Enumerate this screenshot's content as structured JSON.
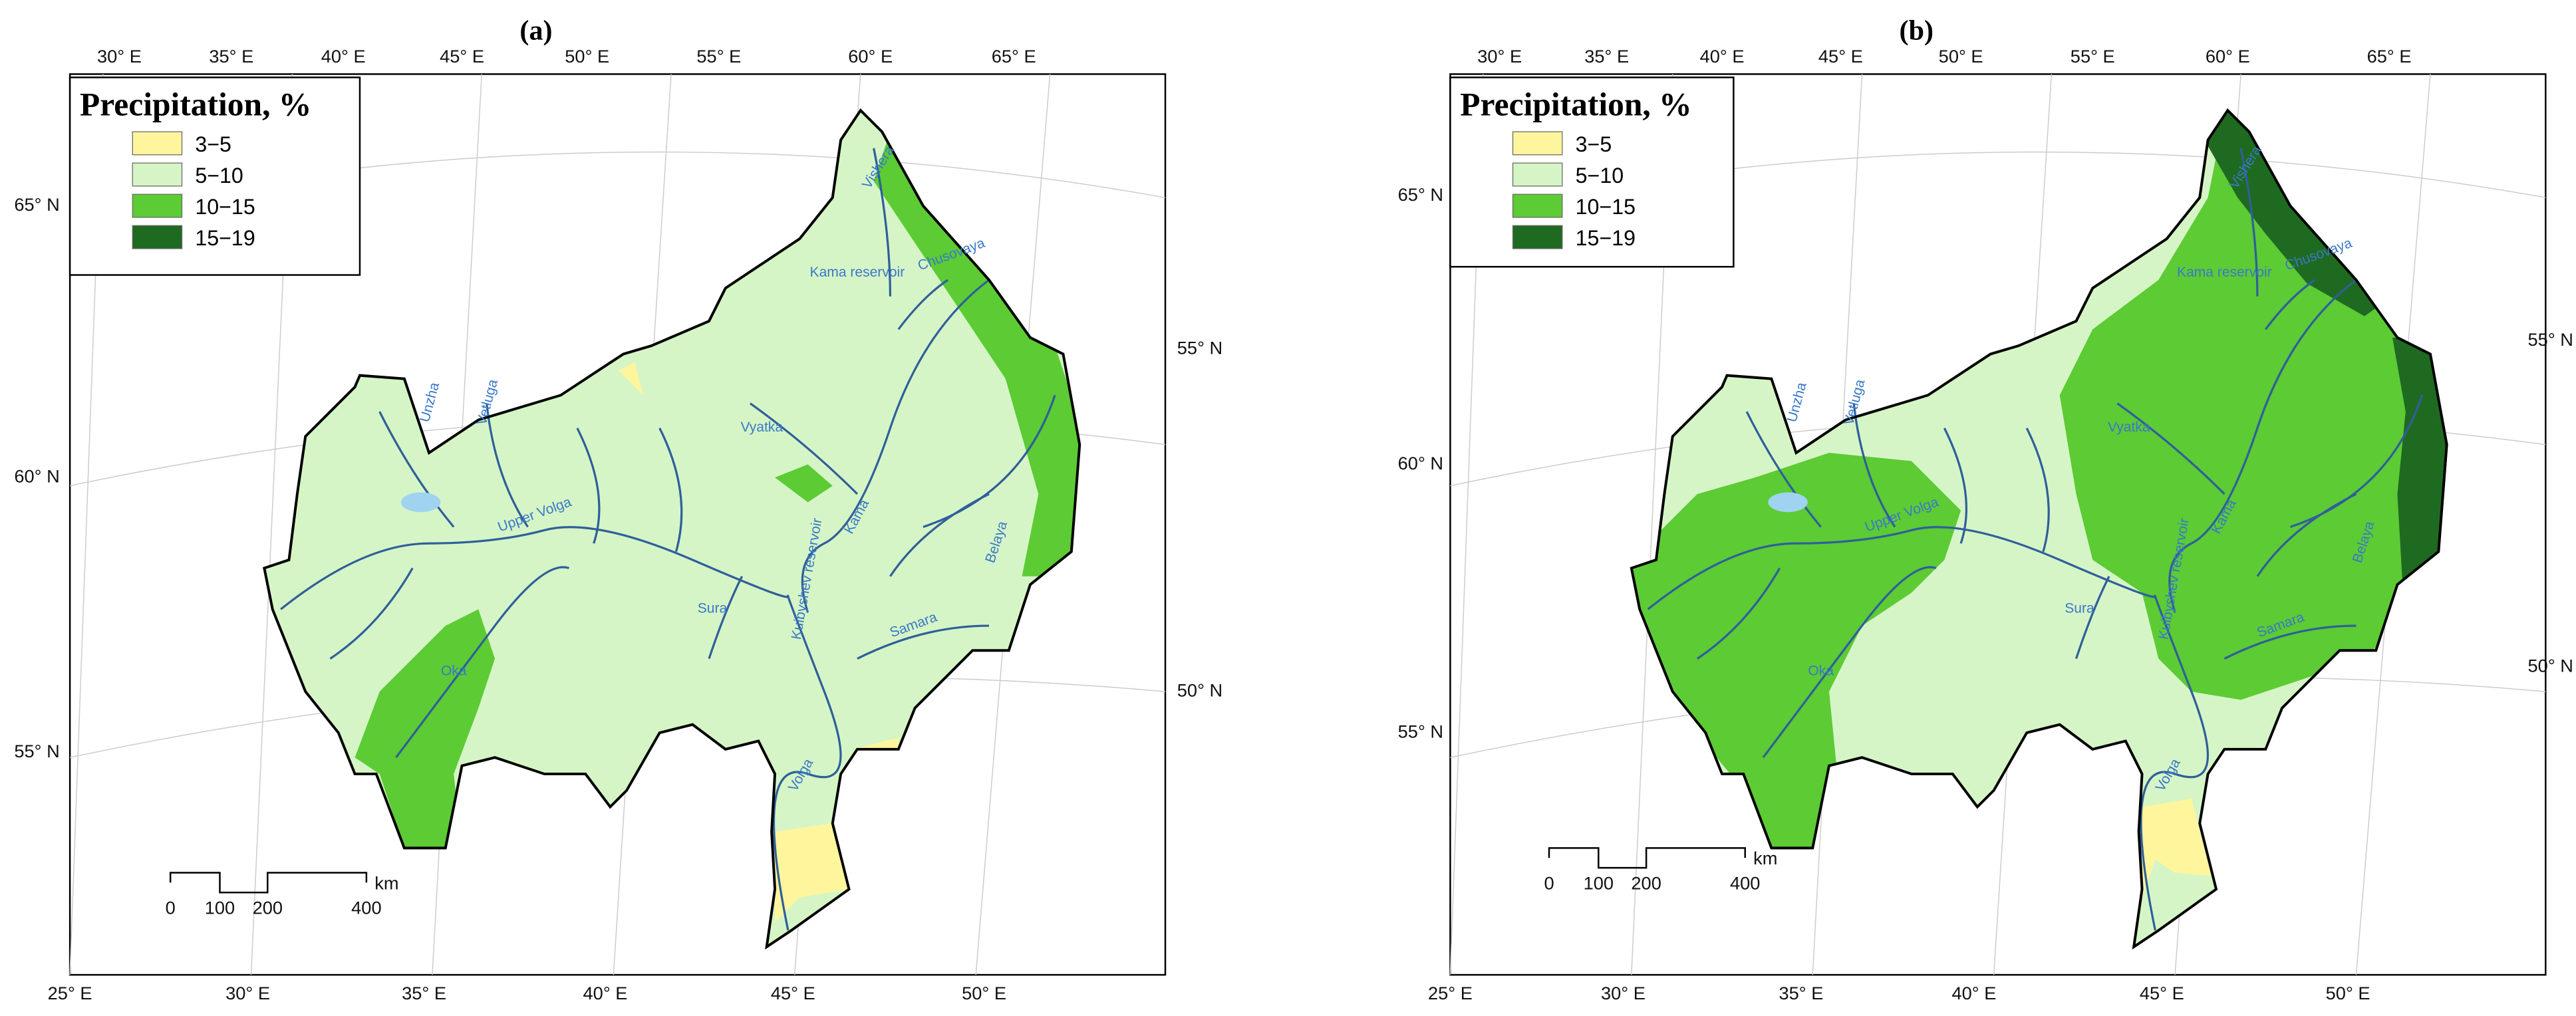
{
  "panels": [
    {
      "label": "(a)",
      "legend": {
        "title": "Precipitation, %",
        "items": [
          {
            "label": "3−5",
            "color": "#fff59d"
          },
          {
            "label": "5−10",
            "color": "#d6f5c6"
          },
          {
            "label": "10−15",
            "color": "#5ccb34"
          },
          {
            "label": "15−19",
            "color": "#1f6a21"
          }
        ]
      },
      "graticule": {
        "top": [
          "30° E",
          "35° E",
          "40° E",
          "45° E",
          "50° E",
          "55° E",
          "60° E",
          "65° E"
        ],
        "left": [
          "65° N",
          "60° N",
          "55° N"
        ],
        "right": [
          "55° N",
          "50° N"
        ],
        "bottom": [
          "25° E",
          "30° E",
          "35° E",
          "40° E",
          "45° E",
          "50° E"
        ]
      },
      "scale_bar": {
        "ticks": [
          "0",
          "100",
          "200",
          "400"
        ],
        "unit": "km"
      },
      "rivers": [
        "Upper Volga",
        "Oka",
        "Kama",
        "Vyatka",
        "Volga",
        "Sura",
        "Samara",
        "Belaya",
        "Chusovaya",
        "Vishera",
        "Unzha",
        "Vetluga",
        "Kama reservoir",
        "Kuibyshev reservoir"
      ]
    },
    {
      "label": "(b)",
      "legend": {
        "title": "Precipitation, %",
        "items": [
          {
            "label": "3−5",
            "color": "#fff59d"
          },
          {
            "label": "5−10",
            "color": "#d6f5c6"
          },
          {
            "label": "10−15",
            "color": "#5ccb34"
          },
          {
            "label": "15−19",
            "color": "#1f6a21"
          }
        ]
      },
      "graticule": {
        "top": [
          "30° E",
          "35° E",
          "40° E",
          "45° E",
          "50° E",
          "55° E",
          "60° E",
          "65° E"
        ],
        "left": [
          "65° N",
          "60° N",
          "55° N"
        ],
        "right": [
          "55° N",
          "50° N"
        ],
        "bottom": [
          "25° E",
          "30° E",
          "35° E",
          "40° E",
          "45° E",
          "50° E"
        ]
      },
      "scale_bar": {
        "ticks": [
          "0",
          "100",
          "200",
          "400"
        ],
        "unit": "km"
      },
      "rivers": [
        "Upper Volga",
        "Oka",
        "Kama",
        "Vyatka",
        "Volga",
        "Sura",
        "Samara",
        "Belaya",
        "Chusovaya",
        "Vishera",
        "Unzha",
        "Vetluga",
        "Kama reservoir",
        "Kuibyshev reservoir"
      ]
    }
  ]
}
